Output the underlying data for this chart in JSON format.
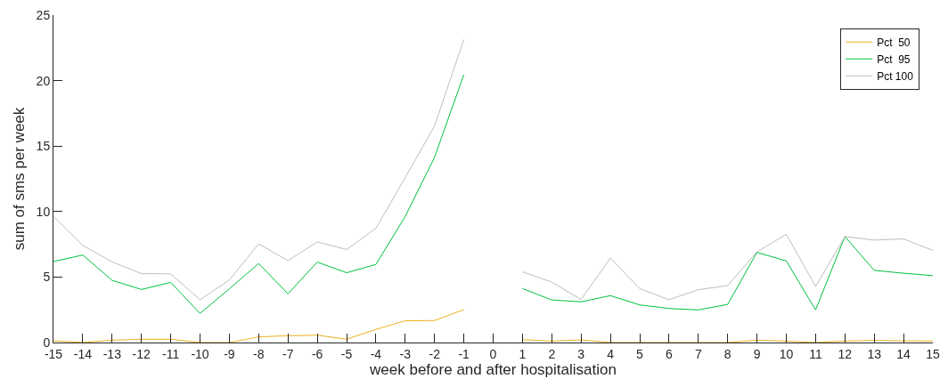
{
  "chart_data": {
    "type": "line",
    "xlabel": "week before and after hospitalisation",
    "ylabel": "sum of sms per week",
    "x": [
      -15,
      -14,
      -13,
      -12,
      -11,
      -10,
      -9,
      -8,
      -7,
      -6,
      -5,
      -4,
      -3,
      -2,
      -1,
      0,
      1,
      2,
      3,
      4,
      5,
      6,
      7,
      8,
      9,
      10,
      11,
      12,
      13,
      14,
      15
    ],
    "series": [
      {
        "name": "Pct  50",
        "color": "#edb120",
        "values": [
          0.13,
          0,
          0.18,
          0.25,
          0.25,
          0,
          0,
          0.43,
          0.52,
          0.56,
          0.25,
          1.0,
          1.66,
          1.68,
          2.51,
          null,
          0.22,
          0.11,
          0.2,
          0,
          0,
          0,
          0,
          0,
          0.18,
          0.11,
          0,
          0.11,
          0.16,
          0.13,
          0.11
        ]
      },
      {
        "name": "Pct  95",
        "color": "#00c040",
        "values": [
          6.18,
          6.68,
          4.75,
          4.05,
          4.59,
          2.22,
          4.1,
          6.03,
          3.72,
          6.14,
          5.33,
          5.96,
          9.63,
          14.14,
          20.45,
          null,
          4.12,
          3.25,
          3.11,
          3.58,
          2.87,
          2.6,
          2.49,
          2.91,
          6.88,
          6.23,
          2.49,
          8.09,
          5.51,
          5.29,
          5.11
        ]
      },
      {
        "name": "Pct 100",
        "color": "#bdbdbd",
        "values": [
          9.63,
          7.41,
          6.16,
          5.26,
          5.24,
          3.27,
          4.77,
          7.53,
          6.25,
          7.68,
          7.1,
          8.71,
          12.6,
          16.53,
          23.14,
          null,
          5.4,
          4.61,
          3.29,
          6.45,
          4.12,
          3.27,
          4.03,
          4.35,
          6.92,
          8.27,
          4.28,
          8.09,
          7.82,
          7.91,
          7.03
        ]
      }
    ],
    "xlim": [
      -15,
      15
    ],
    "xticks": [
      -15,
      -14,
      -13,
      -12,
      -11,
      -10,
      -9,
      -8,
      -7,
      -6,
      -5,
      -4,
      -3,
      -2,
      -1,
      0,
      1,
      2,
      3,
      4,
      5,
      6,
      7,
      8,
      9,
      10,
      11,
      12,
      13,
      14,
      15
    ],
    "ylim": [
      0,
      25
    ],
    "yticks": [
      0,
      5,
      10,
      15,
      20,
      25
    ],
    "grid": false,
    "legend": "top right",
    "marker": "none",
    "line_style": "solid"
  }
}
